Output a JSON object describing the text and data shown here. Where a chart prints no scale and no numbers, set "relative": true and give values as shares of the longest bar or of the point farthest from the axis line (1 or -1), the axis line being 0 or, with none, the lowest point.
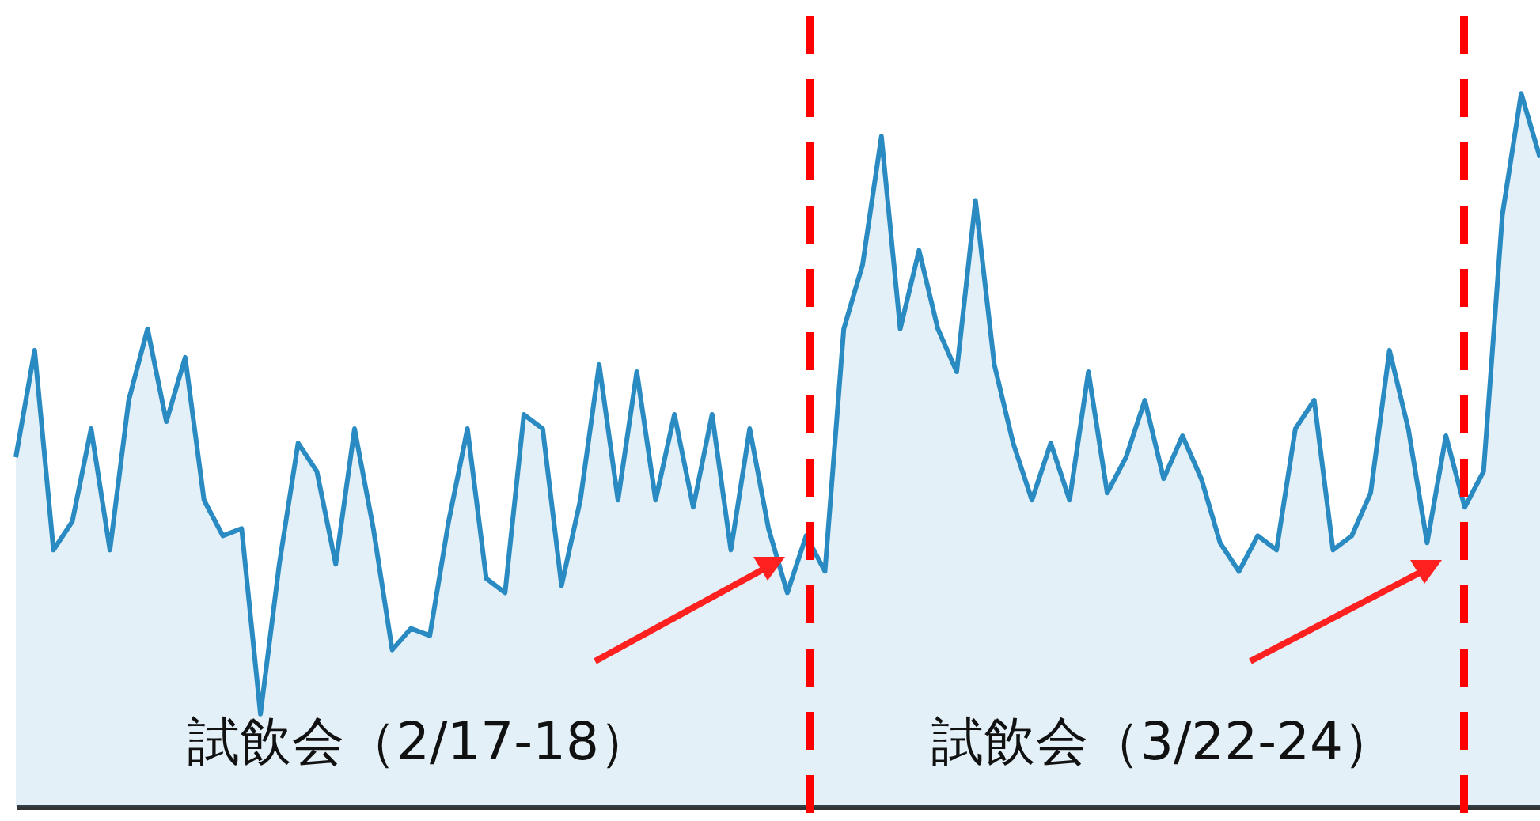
{
  "chart_data": {
    "type": "area",
    "relative": true,
    "categories": [
      null,
      null,
      null,
      null,
      null,
      null,
      null,
      null,
      null,
      null,
      null,
      null,
      null,
      null,
      null,
      null,
      null,
      null,
      null,
      null,
      null,
      null,
      null,
      null,
      null,
      null,
      null,
      null,
      null,
      null,
      null,
      null,
      null,
      null,
      null,
      null,
      null,
      null,
      null,
      null,
      null,
      null,
      null,
      null,
      null,
      null,
      null,
      null,
      null,
      null,
      null,
      null,
      null,
      null,
      null,
      null,
      null,
      null,
      null,
      null,
      null,
      null,
      null,
      null,
      null,
      null,
      null,
      null,
      null,
      null,
      null,
      null,
      null,
      null,
      null,
      null,
      null,
      null,
      null,
      null,
      null,
      null
    ],
    "series": [
      {
        "color": "#2a8ac2",
        "values": [
          0.49,
          0.64,
          0.36,
          0.4,
          0.53,
          0.36,
          0.57,
          0.67,
          0.54,
          0.63,
          0.43,
          0.38,
          0.39,
          0.13,
          0.34,
          0.51,
          0.47,
          0.34,
          0.53,
          0.39,
          0.22,
          0.25,
          0.24,
          0.4,
          0.53,
          0.32,
          0.3,
          0.55,
          0.53,
          0.31,
          0.43,
          0.62,
          0.43,
          0.61,
          0.43,
          0.55,
          0.42,
          0.55,
          0.36,
          0.53,
          0.39,
          0.3,
          0.38,
          0.33,
          0.67,
          0.76,
          0.94,
          0.67,
          0.78,
          0.67,
          0.61,
          0.85,
          0.62,
          0.51,
          0.43,
          0.51,
          0.43,
          0.61,
          0.44,
          0.49,
          0.57,
          0.46,
          0.52,
          0.46,
          0.37,
          0.33,
          0.38,
          0.36,
          0.53,
          0.57,
          0.36,
          0.38,
          0.44,
          0.64,
          0.53,
          0.37,
          0.52,
          0.42,
          0.47,
          0.83,
          1,
          0.91
        ]
      }
    ],
    "annotations": [
      "試飲会（2/17-18）",
      "試飲会（3/22-24）"
    ]
  }
}
